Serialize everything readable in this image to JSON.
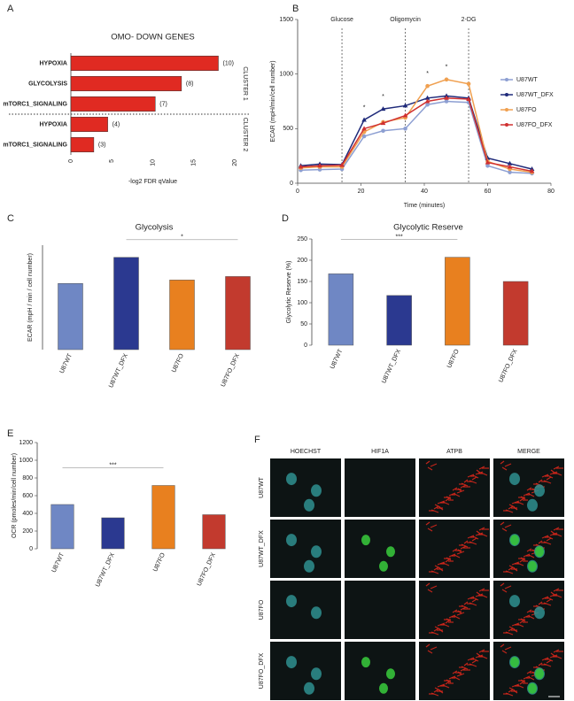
{
  "chart_data": [
    {
      "type": "barh",
      "panel": "A",
      "title": "OMO- DOWN GENES",
      "categories": [
        "HYPOXIA",
        "GLYCOLYSIS",
        "mTORC1_SIGNALING",
        "HYPOXIA",
        "mTORC1_SIGNALING"
      ],
      "values": [
        18,
        13.5,
        10.3,
        4.5,
        2.8
      ],
      "annotations": [
        "(10)",
        "(8)",
        "(7)",
        "(4)",
        "(3)"
      ],
      "groups": [
        {
          "label": "CLUSTER 1",
          "size": 3
        },
        {
          "label": "CLUSTER 2",
          "size": 2
        }
      ],
      "color": "#e02a22",
      "xlabel": "-log2 FDR qValue",
      "xlim": [
        0,
        20
      ],
      "xticks": [
        0,
        5,
        10,
        15,
        20
      ]
    },
    {
      "type": "line",
      "panel": "B",
      "xlabel": "Time (minutes)",
      "ylabel": "ECAR (mpH/min/cell number)",
      "x": [
        1,
        7,
        14,
        21,
        27,
        34,
        41,
        47,
        54,
        60,
        67,
        74
      ],
      "series": [
        {
          "name": "U87WT",
          "color": "#8d9fd2",
          "values": [
            120,
            125,
            130,
            430,
            480,
            500,
            720,
            750,
            740,
            160,
            100,
            90
          ]
        },
        {
          "name": "U87WT_DFX",
          "color": "#1f2a7a",
          "values": [
            160,
            175,
            170,
            580,
            680,
            710,
            780,
            800,
            780,
            230,
            180,
            130
          ]
        },
        {
          "name": "U87FO",
          "color": "#f0a050",
          "values": [
            140,
            150,
            150,
            470,
            560,
            600,
            890,
            950,
            910,
            200,
            130,
            100
          ]
        },
        {
          "name": "U87FO_DFX",
          "color": "#d03030",
          "values": [
            150,
            160,
            165,
            500,
            550,
            620,
            750,
            780,
            770,
            190,
            150,
            110
          ]
        }
      ],
      "annotations": [
        {
          "x": 14,
          "label": "Glucose"
        },
        {
          "x": 34,
          "label": "Oligomycin"
        },
        {
          "x": 54,
          "label": "2-DG"
        }
      ],
      "markers": [
        {
          "x": 21,
          "label": "*"
        },
        {
          "x": 27,
          "label": "*"
        },
        {
          "x": 41,
          "label": "*"
        },
        {
          "x": 47,
          "label": "*"
        }
      ],
      "xlim": [
        0,
        80
      ],
      "xticks": [
        0,
        20,
        40,
        60,
        80
      ],
      "ylim": [
        0,
        1500
      ],
      "yticks": [
        0,
        500,
        1000,
        1500
      ]
    },
    {
      "type": "bar",
      "panel": "C",
      "title": "Glycolysis",
      "ylabel": "ECAR (mpH / min / cell number)",
      "categories": [
        "U87WT",
        "U87WT_DFX",
        "U87FO",
        "U87FO_DFX"
      ],
      "values": [
        0.38,
        0.53,
        0.4,
        0.42
      ],
      "colors": [
        "#6f87c4",
        "#2b3990",
        "#e8801f",
        "#c23a2e"
      ],
      "significance": {
        "label": "*",
        "between": [
          1,
          3
        ]
      },
      "ylim": [
        0,
        0.6
      ]
    },
    {
      "type": "bar",
      "panel": "D",
      "title": "Glycolytic Reserve",
      "ylabel": "Glycolytic Reserve (%)",
      "categories": [
        "U87WT",
        "U87WT_DFX",
        "U87FO",
        "U87FO_DFX"
      ],
      "values": [
        168,
        117,
        207,
        150
      ],
      "colors": [
        "#6f87c4",
        "#2b3990",
        "#e8801f",
        "#c23a2e"
      ],
      "significance": {
        "label": "***",
        "between": [
          0,
          2
        ]
      },
      "ylim": [
        0,
        250
      ],
      "yticks": [
        0,
        50,
        100,
        150,
        200,
        250
      ]
    },
    {
      "type": "bar",
      "panel": "E",
      "ylabel": "OCR (pmoles/min/cell number)",
      "categories": [
        "U87WT",
        "U87WT_DFX",
        "U87FO",
        "U87FO_DFX"
      ],
      "values": [
        500,
        350,
        715,
        385
      ],
      "colors": [
        "#6f87c4",
        "#2b3990",
        "#e8801f",
        "#c23a2e"
      ],
      "significance": {
        "label": "***",
        "between": [
          0,
          2
        ]
      },
      "ylim": [
        0,
        1200
      ],
      "yticks": [
        0,
        200,
        400,
        600,
        800,
        1000,
        1200
      ]
    }
  ],
  "micrographs": {
    "panel": "F",
    "columns": [
      "HOECHST",
      "HIF1A",
      "ATPB",
      "MERGE"
    ],
    "rows": [
      "U87WT",
      "U87WT_DFX",
      "U87FO",
      "U87FO_DFX"
    ]
  }
}
